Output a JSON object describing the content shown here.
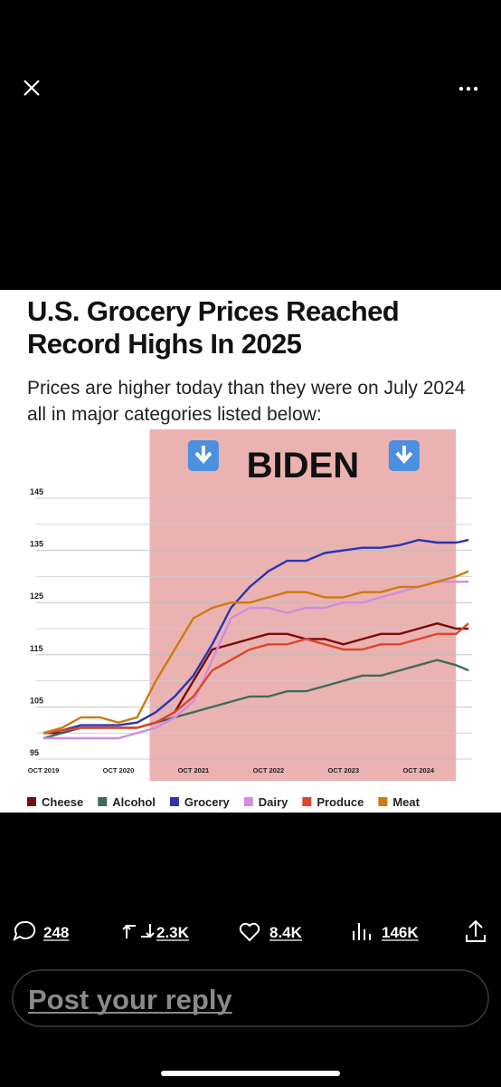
{
  "chart_data": {
    "type": "line",
    "title": "U.S. Grocery Prices Reached Record Highs In 2025",
    "subtitle": "Prices are higher today than they were on July 2024 all in major categories listed below:",
    "annotation": {
      "label": "BIDEN",
      "span": [
        "2021-03",
        "2025-04"
      ],
      "color": "#e8a5a5"
    },
    "x": [
      "2019-10",
      "2020-01",
      "2020-04",
      "2020-07",
      "2020-10",
      "2021-01",
      "2021-04",
      "2021-07",
      "2021-10",
      "2022-01",
      "2022-04",
      "2022-07",
      "2022-10",
      "2023-01",
      "2023-04",
      "2023-07",
      "2023-10",
      "2024-01",
      "2024-04",
      "2024-07",
      "2024-10",
      "2025-01",
      "2025-04",
      "2025-06"
    ],
    "xlim": [
      "2019-10",
      "2025-07"
    ],
    "xticks": [
      {
        "value": "2019-10",
        "label": "OCT 2019"
      },
      {
        "value": "2020-10",
        "label": "OCT 2020"
      },
      {
        "value": "2021-10",
        "label": "OCT 2021"
      },
      {
        "value": "2022-10",
        "label": "OCT 2022"
      },
      {
        "value": "2023-10",
        "label": "OCT 2023"
      },
      {
        "value": "2024-10",
        "label": "OCT 2024"
      }
    ],
    "ylim": [
      95,
      145
    ],
    "yticks": [
      95,
      105,
      115,
      125,
      135,
      145
    ],
    "minor_grid": [
      100,
      110,
      120,
      130,
      140
    ],
    "grid": true,
    "series": [
      {
        "name": "Cheese",
        "color": "#7a0c0c",
        "values": [
          100,
          100,
          101,
          101,
          101,
          101,
          102,
          104,
          110,
          116,
          117,
          118,
          119,
          119,
          118,
          118,
          117,
          118,
          119,
          119,
          120,
          121,
          120,
          120
        ]
      },
      {
        "name": "Alcohol",
        "color": "#3f6b55",
        "values": [
          99,
          100,
          101,
          101,
          101,
          101,
          102,
          103,
          104,
          105,
          106,
          107,
          107,
          108,
          108,
          109,
          110,
          111,
          111,
          112,
          113,
          114,
          113,
          112
        ]
      },
      {
        "name": "Grocery",
        "color": "#2b35b0",
        "values": [
          100,
          100.5,
          101.5,
          101.5,
          101.5,
          102,
          104,
          107,
          111,
          117,
          124,
          128,
          131,
          133,
          133,
          134.5,
          135,
          135.5,
          135.5,
          136,
          137,
          136.5,
          136.5,
          137
        ]
      },
      {
        "name": "Dairy",
        "color": "#d38be0",
        "values": [
          99,
          99,
          99,
          99,
          99,
          100,
          101,
          103,
          106,
          114,
          122,
          124,
          124,
          123,
          124,
          124,
          125,
          125,
          126,
          127,
          128,
          129,
          129,
          129
        ]
      },
      {
        "name": "Produce",
        "color": "#e0452a",
        "values": [
          100,
          100.5,
          101,
          101,
          101,
          101,
          102,
          104,
          107,
          112,
          114,
          116,
          117,
          117,
          118,
          117,
          116,
          116,
          117,
          117,
          118,
          119,
          119,
          121
        ]
      },
      {
        "name": "Meat",
        "color": "#cf7a10",
        "values": [
          100,
          101,
          103,
          103,
          102,
          103,
          110,
          116,
          122,
          124,
          125,
          125,
          126,
          127,
          127,
          126,
          126,
          127,
          127,
          128,
          128,
          129,
          130,
          131
        ]
      }
    ]
  },
  "ui": {
    "stats": {
      "replies": "248",
      "reposts": "2.3K",
      "likes": "8.4K",
      "views": "146K"
    },
    "reply_placeholder": "Post your reply"
  }
}
